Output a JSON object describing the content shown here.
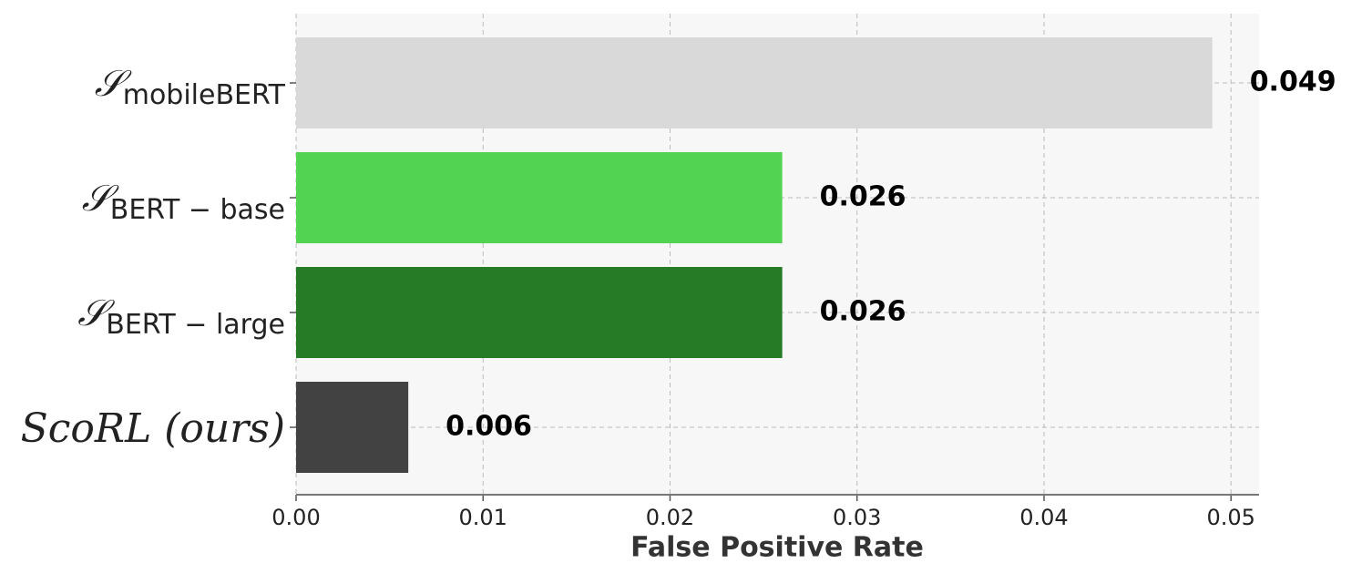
{
  "chart_data": {
    "type": "barh",
    "categories": [
      {
        "base": "𝒮",
        "sub": "mobileBERT"
      },
      {
        "base": "𝒮",
        "sub": "BERT − base"
      },
      {
        "base": "𝒮",
        "sub": "BERT − large"
      },
      {
        "base": "ScoRL (ours)"
      }
    ],
    "values": [
      0.049,
      0.026,
      0.026,
      0.006
    ],
    "colors": [
      "#d9d9d9",
      "#52d452",
      "#267b27",
      "#424242"
    ],
    "xlabel": "False Positive Rate",
    "xlim": [
      0,
      0.0515
    ],
    "xticks": [
      {
        "value": 0,
        "label": "0.00"
      },
      0.01,
      0.02,
      0.03,
      0.04,
      0.05
    ],
    "grid": true
  }
}
